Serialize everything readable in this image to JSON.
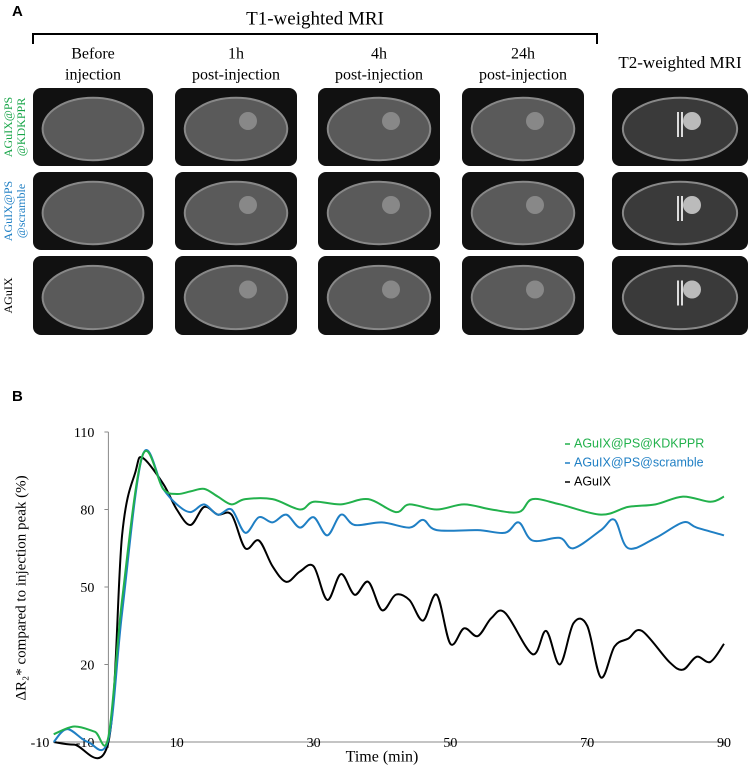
{
  "panel_a": {
    "label": "A",
    "group_title": "T1-weighted MRI",
    "columns": [
      {
        "lines": [
          "Before",
          "injection"
        ]
      },
      {
        "lines": [
          "1h",
          "post-injection"
        ]
      },
      {
        "lines": [
          "4h",
          "post-injection"
        ]
      },
      {
        "lines": [
          "24h",
          "post-injection"
        ]
      }
    ],
    "t2_title": "T2-weighted MRI",
    "rows": [
      {
        "lines": [
          "AGuIX@PS",
          "@KDKPPR"
        ],
        "color": "#1aa64a"
      },
      {
        "lines": [
          "AGuIX@PS",
          "@scramble"
        ],
        "color": "#1f7fc4"
      },
      {
        "lines": [
          "AGuIX"
        ],
        "color": "#000000"
      }
    ]
  },
  "chart_data": {
    "type": "line",
    "panel_label": "B",
    "xlabel": "Time (min)",
    "ylabel": "ΔR₂* compared to injection peak (%)",
    "xlim": [
      -10,
      90
    ],
    "ylim": [
      -10,
      110
    ],
    "xticks": [
      -10,
      10,
      30,
      50,
      70,
      90
    ],
    "yticks": [
      -10,
      20,
      50,
      80,
      110
    ],
    "series": [
      {
        "name": "AGuIX@PS@KDKPPR",
        "color": "#22b14c",
        "x": [
          -8,
          -5,
          -2,
          0,
          2,
          5,
          8,
          10,
          12,
          14,
          16,
          18,
          20,
          24,
          28,
          30,
          34,
          38,
          42,
          44,
          48,
          52,
          56,
          60,
          62,
          66,
          72,
          76,
          80,
          84,
          88,
          90
        ],
        "values": [
          -7,
          -4,
          -6,
          -8,
          45,
          101,
          88,
          86,
          87,
          88,
          85,
          82,
          84,
          84,
          80,
          83,
          82,
          84,
          79,
          82,
          80,
          82,
          80,
          79,
          84,
          82,
          78,
          81,
          82,
          85,
          83,
          85
        ]
      },
      {
        "name": "AGuIX@PS@scramble",
        "color": "#1f7fc4",
        "x": [
          -8,
          -6,
          -3,
          0,
          2,
          5,
          8,
          10,
          12,
          14,
          16,
          18,
          20,
          22,
          24,
          26,
          28,
          30,
          32,
          34,
          36,
          40,
          44,
          46,
          48,
          54,
          58,
          60,
          62,
          66,
          68,
          72,
          74,
          76,
          80,
          84,
          86,
          90
        ],
        "values": [
          -10,
          -5,
          -10,
          -9,
          40,
          101,
          88,
          82,
          79,
          82,
          78,
          80,
          71,
          77,
          75,
          78,
          73,
          77,
          70,
          78,
          74,
          75,
          73,
          76,
          72,
          72,
          71,
          75,
          68,
          69,
          65,
          72,
          76,
          65,
          69,
          75,
          73,
          70
        ]
      },
      {
        "name": "AGuIX",
        "color": "#000000",
        "x": [
          -8,
          -5,
          0,
          2,
          4,
          5,
          8,
          10,
          12,
          14,
          16,
          18,
          20,
          22,
          24,
          26,
          28,
          30,
          32,
          34,
          36,
          38,
          40,
          42,
          44,
          46,
          48,
          50,
          52,
          54,
          56,
          58,
          62,
          64,
          66,
          68,
          70,
          72,
          74,
          76,
          78,
          82,
          84,
          86,
          88,
          90
        ],
        "values": [
          -10,
          -11,
          -10,
          70,
          95,
          100,
          90,
          80,
          74,
          81,
          78,
          78,
          65,
          68,
          58,
          52,
          56,
          58,
          45,
          55,
          47,
          52,
          41,
          47,
          45,
          37,
          47,
          28,
          34,
          31,
          38,
          40,
          24,
          33,
          20,
          36,
          35,
          15,
          27,
          30,
          33,
          21,
          18,
          23,
          21,
          28
        ]
      }
    ]
  }
}
